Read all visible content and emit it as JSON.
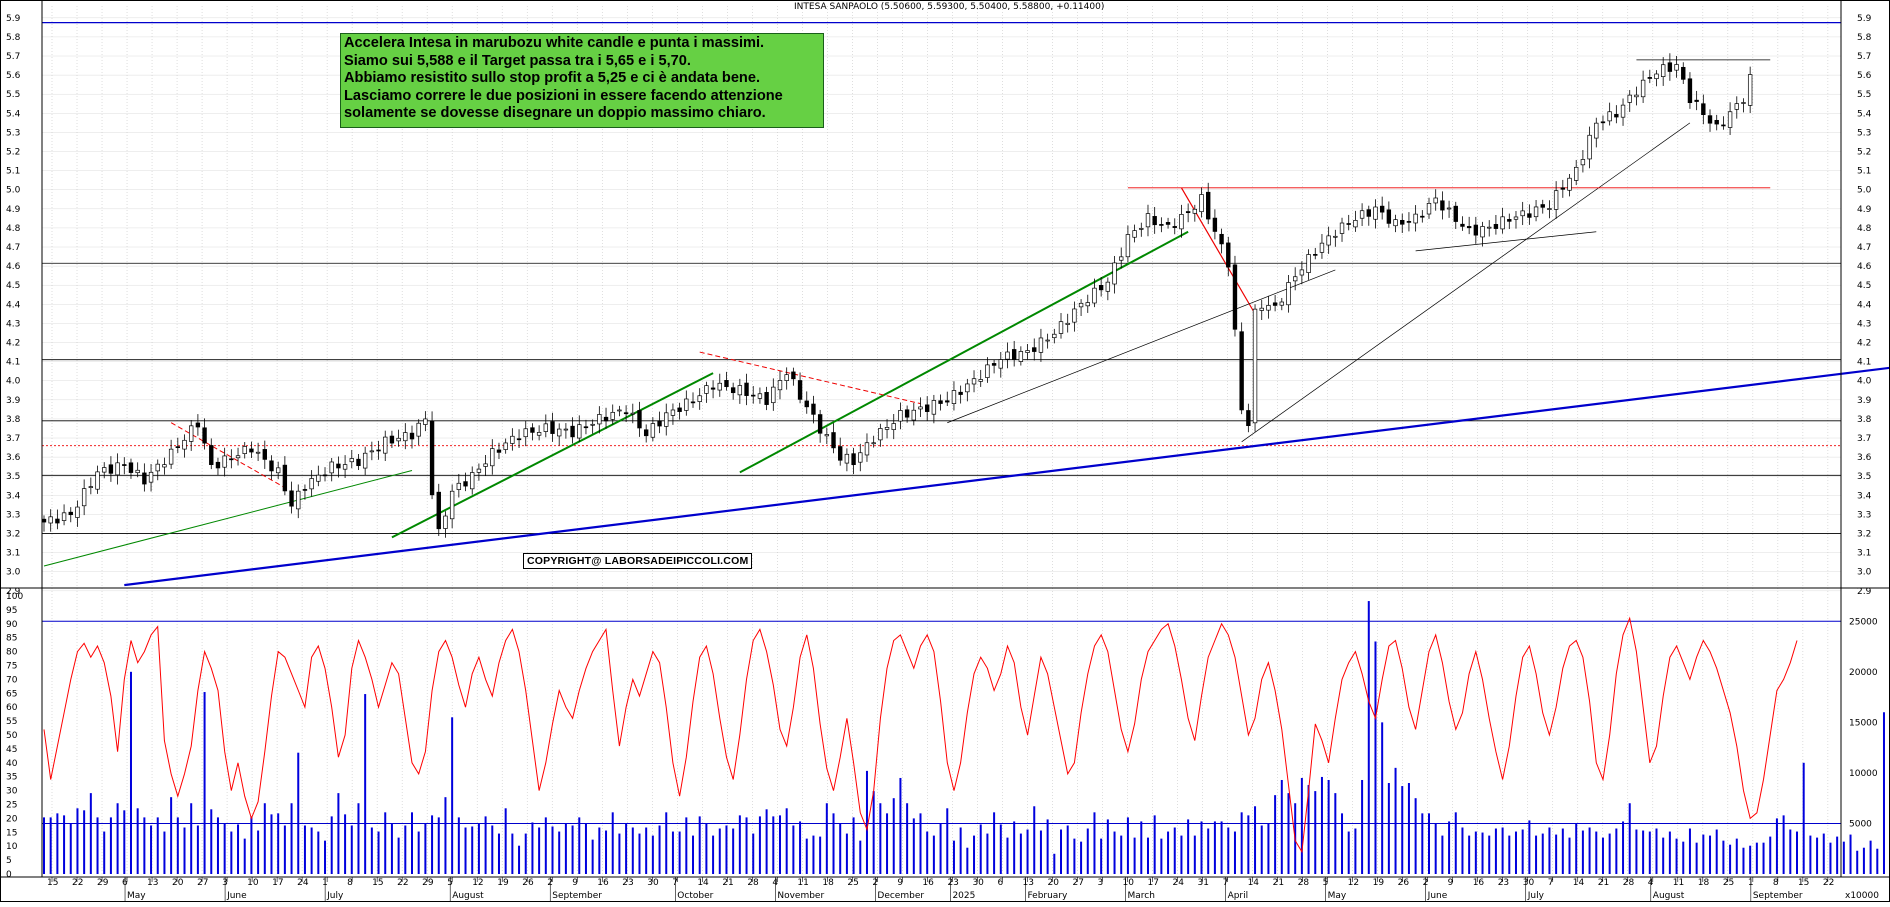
{
  "chart_title": "INTESA SANPAOLO (5.50600, 5.59300, 5.50400, 5.58800, +0.11400)",
  "annotation_lines": [
    "Accelera Intesa in marubozu white candle e punta i massimi.",
    "Siamo sui 5,588 e il Target passa tra i 5,65 e i 5,70.",
    "Abbiamo resistito sullo stop profit a 5,25 e ci è andata bene.",
    "Lasciamo correre le due posizioni in essere facendo attenzione",
    "solamente se dovesse disegnare un doppio massimo chiaro."
  ],
  "copyright": "COPYRIGHT@ LABORSADEIPICCOLI.COM",
  "volume_unit_label": "x10000",
  "colors": {
    "candle": "#000000",
    "stoch": "#ff0000",
    "volume": "#0000dd",
    "level_blue": "#0000cc",
    "trend_green": "#008800",
    "resist_red": "#ee0000"
  },
  "chart_data": [
    {
      "type": "candlestick",
      "ylim": [
        2.92,
        5.92
      ],
      "yticks": [
        "2.9",
        "3.0",
        "3.1",
        "3.2",
        "3.3",
        "3.4",
        "3.5",
        "3.6",
        "3.7",
        "3.8",
        "3.9",
        "4.0",
        "4.1",
        "4.2",
        "4.3",
        "4.4",
        "4.5",
        "4.6",
        "4.7",
        "4.8",
        "4.9",
        "5.0",
        "5.1",
        "5.2",
        "5.3",
        "5.4",
        "5.5",
        "5.6",
        "5.7",
        "5.8",
        "5.9"
      ],
      "xaxis_day_labels": [
        "15",
        "22",
        "29",
        "6",
        "13",
        "20",
        "27",
        "3",
        "10",
        "17",
        "24",
        "1",
        "8",
        "15",
        "22",
        "29",
        "5",
        "12",
        "19",
        "26",
        "2",
        "9",
        "16",
        "23",
        "30",
        "7",
        "14",
        "21",
        "28",
        "4",
        "11",
        "18",
        "25",
        "2",
        "9",
        "16",
        "23",
        "30",
        "6",
        "13",
        "20",
        "27",
        "3",
        "10",
        "17",
        "24",
        "31",
        "7",
        "14",
        "21",
        "28",
        "5",
        "12",
        "19",
        "26",
        "2",
        "9",
        "16",
        "23",
        "30",
        "7",
        "14",
        "21",
        "28",
        "4",
        "11",
        "18",
        "25",
        "1",
        "8",
        "15",
        "22"
      ],
      "xaxis_month_labels": [
        "May",
        "June",
        "July",
        "August",
        "September",
        "October",
        "November",
        "December",
        "2025",
        "February",
        "March",
        "April",
        "May",
        "June",
        "July",
        "August",
        "September"
      ],
      "price_path": [
        [
          0,
          3.26
        ],
        [
          4,
          3.3
        ],
        [
          8,
          3.52
        ],
        [
          12,
          3.56
        ],
        [
          15,
          3.48
        ],
        [
          19,
          3.62
        ],
        [
          23,
          3.78
        ],
        [
          25,
          3.55
        ],
        [
          28,
          3.6
        ],
        [
          31,
          3.65
        ],
        [
          33,
          3.58
        ],
        [
          35,
          3.52
        ],
        [
          37,
          3.35
        ],
        [
          39,
          3.45
        ],
        [
          43,
          3.55
        ],
        [
          47,
          3.58
        ],
        [
          51,
          3.68
        ],
        [
          55,
          3.72
        ],
        [
          57,
          3.8
        ],
        [
          58,
          3.42
        ],
        [
          59,
          3.2
        ],
        [
          61,
          3.42
        ],
        [
          64,
          3.5
        ],
        [
          67,
          3.62
        ],
        [
          71,
          3.72
        ],
        [
          75,
          3.75
        ],
        [
          79,
          3.73
        ],
        [
          83,
          3.8
        ],
        [
          87,
          3.85
        ],
        [
          90,
          3.72
        ],
        [
          93,
          3.82
        ],
        [
          97,
          3.9
        ],
        [
          100,
          3.98
        ],
        [
          104,
          3.95
        ],
        [
          108,
          3.9
        ],
        [
          111,
          4.05
        ],
        [
          113,
          3.92
        ],
        [
          116,
          3.75
        ],
        [
          119,
          3.6
        ],
        [
          121,
          3.58
        ],
        [
          124,
          3.7
        ],
        [
          128,
          3.82
        ],
        [
          131,
          3.85
        ],
        [
          135,
          3.9
        ],
        [
          139,
          4.0
        ],
        [
          143,
          4.12
        ],
        [
          147,
          4.15
        ],
        [
          151,
          4.25
        ],
        [
          155,
          4.4
        ],
        [
          159,
          4.52
        ],
        [
          162,
          4.75
        ],
        [
          165,
          4.85
        ],
        [
          168,
          4.8
        ],
        [
          171,
          4.88
        ],
        [
          173,
          4.95
        ],
        [
          175,
          4.78
        ],
        [
          177,
          4.62
        ],
        [
          178,
          4.25
        ],
        [
          179,
          3.85
        ],
        [
          180,
          3.78
        ],
        [
          181,
          4.35
        ],
        [
          182,
          4.4
        ],
        [
          184,
          4.38
        ],
        [
          187,
          4.55
        ],
        [
          190,
          4.68
        ],
        [
          193,
          4.78
        ],
        [
          196,
          4.85
        ],
        [
          199,
          4.9
        ],
        [
          202,
          4.82
        ],
        [
          205,
          4.85
        ],
        [
          208,
          4.95
        ],
        [
          210,
          4.88
        ],
        [
          213,
          4.78
        ],
        [
          216,
          4.8
        ],
        [
          219,
          4.85
        ],
        [
          222,
          4.88
        ],
        [
          225,
          4.92
        ],
        [
          227,
          5.02
        ],
        [
          229,
          5.1
        ],
        [
          232,
          5.35
        ],
        [
          235,
          5.4
        ],
        [
          238,
          5.52
        ],
        [
          241,
          5.62
        ],
        [
          244,
          5.65
        ],
        [
          246,
          5.48
        ],
        [
          248,
          5.4
        ],
        [
          250,
          5.32
        ],
        [
          252,
          5.4
        ],
        [
          254,
          5.48
        ],
        [
          255,
          5.58
        ]
      ]
    },
    {
      "type": "line",
      "name": "stochastic",
      "ylim": [
        0,
        100
      ],
      "yticks": [
        "0",
        "5",
        "10",
        "15",
        "20",
        "25",
        "30",
        "35",
        "40",
        "45",
        "50",
        "55",
        "60",
        "65",
        "70",
        "75",
        "80",
        "85",
        "90",
        "95",
        "100"
      ],
      "values": [
        52,
        34,
        46,
        58,
        70,
        80,
        83,
        78,
        82,
        76,
        64,
        44,
        70,
        84,
        76,
        80,
        86,
        89,
        48,
        36,
        28,
        36,
        46,
        66,
        80,
        74,
        66,
        44,
        30,
        40,
        28,
        20,
        26,
        44,
        64,
        80,
        78,
        72,
        66,
        60,
        78,
        82,
        74,
        60,
        42,
        50,
        74,
        84,
        78,
        70,
        60,
        68,
        76,
        72,
        56,
        40,
        36,
        44,
        66,
        80,
        84,
        78,
        68,
        60,
        72,
        78,
        70,
        64,
        76,
        84,
        88,
        80,
        66,
        48,
        30,
        40,
        54,
        66,
        60,
        56,
        66,
        74,
        80,
        84,
        88,
        66,
        46,
        60,
        70,
        64,
        72,
        80,
        76,
        60,
        40,
        28,
        42,
        62,
        78,
        82,
        72,
        56,
        42,
        34,
        50,
        70,
        84,
        88,
        80,
        68,
        52,
        46,
        60,
        78,
        86,
        74,
        54,
        38,
        30,
        42,
        56,
        40,
        22,
        16,
        30,
        56,
        74,
        84,
        86,
        80,
        74,
        82,
        86,
        80,
        62,
        40,
        30,
        40,
        58,
        72,
        78,
        74,
        66,
        72,
        82,
        76,
        60,
        50,
        64,
        78,
        72,
        60,
        48,
        36,
        40,
        58,
        72,
        82,
        86,
        80,
        66,
        52,
        44,
        54,
        70,
        80,
        84,
        88,
        90,
        82,
        70,
        56,
        48,
        64,
        78,
        84,
        90,
        86,
        78,
        64,
        50,
        56,
        70,
        76,
        66,
        52,
        32,
        12,
        8,
        30,
        54,
        48,
        40,
        56,
        70,
        76,
        80,
        72,
        62,
        56,
        70,
        82,
        84,
        74,
        60,
        52,
        66,
        80,
        86,
        76,
        62,
        52,
        58,
        72,
        80,
        70,
        56,
        44,
        34,
        46,
        64,
        78,
        82,
        72,
        58,
        50,
        60,
        74,
        82,
        84,
        78,
        62,
        40,
        34,
        50,
        72,
        86,
        92,
        80,
        60,
        40,
        46,
        64,
        78,
        82,
        76,
        70,
        78,
        84,
        80,
        74,
        66,
        58,
        46,
        30,
        20,
        22,
        34,
        50,
        66,
        70,
        76,
        84
      ]
    },
    {
      "type": "bar",
      "name": "volume",
      "ylim": [
        0,
        27500
      ],
      "yticks": [
        "5000",
        "10000",
        "15000",
        "20000",
        "25000"
      ],
      "values": [
        5600,
        5600,
        6000,
        5800,
        5000,
        6500,
        6300,
        8000,
        5600,
        4200,
        5600,
        7000,
        6300,
        20000,
        6500,
        5600,
        4800,
        5600,
        4200,
        7600,
        5600,
        4600,
        7000,
        4800,
        18000,
        6400,
        5600,
        5000,
        4200,
        4900,
        3500,
        5700,
        4300,
        7000,
        5900,
        6000,
        4800,
        7000,
        12000,
        4800,
        4600,
        4200,
        3300,
        5700,
        8000,
        5900,
        4800,
        7000,
        17800,
        4600,
        4200,
        6100,
        5000,
        3600,
        4800,
        6100,
        4200,
        5000,
        5800,
        5600,
        7600,
        15500,
        5600,
        4600,
        4700,
        5000,
        5700,
        4800,
        4000,
        6500,
        4000,
        2800,
        4000,
        5100,
        4600,
        5600,
        4700,
        4200,
        5000,
        4800,
        5600,
        5000,
        3400,
        4600,
        4300,
        6100,
        4000,
        5000,
        4600,
        4000,
        4600,
        3800,
        4800,
        6100,
        4200,
        4200,
        5600,
        3800,
        5700,
        5000,
        3800,
        4500,
        4800,
        4500,
        5800,
        5600,
        4000,
        5700,
        6400,
        5700,
        5800,
        6500,
        4800,
        5200,
        3500,
        3800,
        3700,
        7000,
        6000,
        5000,
        4000,
        5600,
        3300,
        10200,
        8200,
        7000,
        6000,
        7500,
        9500,
        7000,
        5500,
        6000,
        4200,
        3800,
        5000,
        6500,
        3300,
        4600,
        2600,
        3800,
        4900,
        4000,
        6100,
        4900,
        3600,
        5200,
        4000,
        4400,
        6700,
        4300,
        5400,
        2000,
        4400,
        4800,
        3500,
        3200,
        4500,
        6100,
        3500,
        5400,
        4200,
        3800,
        5600,
        3600,
        5200,
        3600,
        5800,
        3500,
        4200,
        4600,
        3800,
        5400,
        3800,
        5200,
        4500,
        5200,
        5200,
        4600,
        4200,
        6100,
        5800,
        6700,
        4800,
        5000,
        7800,
        9300,
        8000,
        7000,
        9500,
        8800,
        8200,
        9600,
        9300,
        8000,
        6000,
        4200,
        4500,
        9300,
        27000,
        23000,
        15000,
        9000,
        10500,
        8700,
        9000,
        7500,
        6000,
        6000,
        5000,
        3800,
        5200,
        6100,
        4600,
        3800,
        4200,
        4100,
        3800,
        4500,
        4600,
        3800,
        4200,
        4400,
        5300,
        3800,
        4000,
        4600,
        3900,
        4500,
        3600,
        5000,
        4300,
        4600,
        4200,
        3600,
        4000,
        4500,
        5200,
        7000,
        4400,
        4300,
        4200,
        4500,
        3600,
        4200,
        3500,
        3200,
        4500,
        3100,
        3900,
        3800,
        4400,
        3300,
        2900,
        3500,
        2600,
        2800,
        3100,
        3100,
        3700,
        5500,
        5800,
        4400,
        4200,
        11000,
        3800,
        3600,
        4000,
        3100,
        3700,
        3200,
        3900,
        2300,
        2600,
        3300,
        2500,
        16000,
        5600,
        2800,
        4000,
        3000,
        5000,
        4400,
        4700,
        5500,
        2600,
        2500,
        5200,
        3000,
        3500,
        4300,
        4000,
        4300,
        3700,
        2200,
        3900,
        3000,
        3600,
        4000,
        3200,
        1500,
        2800,
        3000
      ]
    }
  ]
}
